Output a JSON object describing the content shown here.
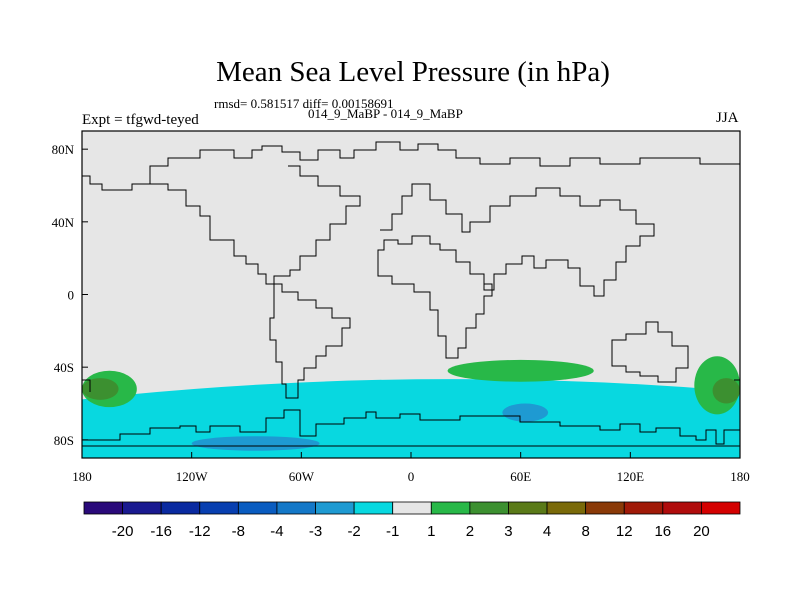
{
  "chart_data": {
    "type": "heatmap",
    "title": "Mean Sea Level Pressure (in hPa)",
    "stats_text": "rmsd= 0.581517 diff= 0.00158691",
    "left_text": "Expt = tfgwd-teyed",
    "center_text": "014_9_MaBP - 014_9_MaBP",
    "right_text": "JJA",
    "projection": "cylindrical equidistant",
    "lon_range": [
      -180,
      180
    ],
    "lat_range": [
      -90,
      90
    ],
    "x_ticks": [
      {
        "value": -180,
        "label": "180"
      },
      {
        "value": -120,
        "label": "120W"
      },
      {
        "value": -60,
        "label": "60W"
      },
      {
        "value": 0,
        "label": "0"
      },
      {
        "value": 60,
        "label": "60E"
      },
      {
        "value": 120,
        "label": "120E"
      },
      {
        "value": 180,
        "label": "180"
      }
    ],
    "y_ticks": [
      {
        "value": 80,
        "label": "80N"
      },
      {
        "value": 40,
        "label": "40N"
      },
      {
        "value": 0,
        "label": "0"
      },
      {
        "value": -40,
        "label": "40S"
      },
      {
        "value": -80,
        "label": "80S"
      }
    ],
    "colorbar": {
      "levels": [
        "-20",
        "-16",
        "-12",
        "-8",
        "-4",
        "-3",
        "-2",
        "-1",
        "1",
        "2",
        "3",
        "4",
        "8",
        "12",
        "16",
        "20"
      ],
      "colors": [
        "#2a0a7a",
        "#1a1a90",
        "#0a2aa0",
        "#083fb0",
        "#0a5cc0",
        "#1478c8",
        "#1e9ad2",
        "#08d8e0",
        "#e6e6e6",
        "#28b848",
        "#3c9030",
        "#5a7a18",
        "#7a6a0a",
        "#8a3a08",
        "#a01a08",
        "#b00c0c",
        "#d40000"
      ]
    },
    "regions": [
      {
        "level": "-1 to -2",
        "color": "#08d8e0",
        "lon_range": [
          -180,
          180
        ],
        "lat_range": [
          -90,
          -50
        ]
      },
      {
        "level": "-2 to -3",
        "color": "#1e9ad2",
        "lon_range": [
          -120,
          -50
        ],
        "lat_range": [
          -86,
          -78
        ]
      },
      {
        "level": "-2 to -3",
        "color": "#1e9ad2",
        "lon_range": [
          50,
          75
        ],
        "lat_range": [
          -70,
          -60
        ]
      },
      {
        "level": "1 to 2",
        "color": "#28b848",
        "lon_range": [
          20,
          100
        ],
        "lat_range": [
          -48,
          -36
        ]
      },
      {
        "level": "1 to 2",
        "color": "#28b848",
        "lon_range": [
          -180,
          -150
        ],
        "lat_range": [
          -62,
          -42
        ]
      },
      {
        "level": "2 to 3",
        "color": "#3c9030",
        "lon_range": [
          -180,
          -160
        ],
        "lat_range": [
          -58,
          -46
        ]
      },
      {
        "level": "1 to 2",
        "color": "#28b848",
        "lon_range": [
          155,
          180
        ],
        "lat_range": [
          -66,
          -34
        ]
      },
      {
        "level": "2 to 3",
        "color": "#3c9030",
        "lon_range": [
          165,
          180
        ],
        "lat_range": [
          -60,
          -46
        ]
      }
    ]
  }
}
